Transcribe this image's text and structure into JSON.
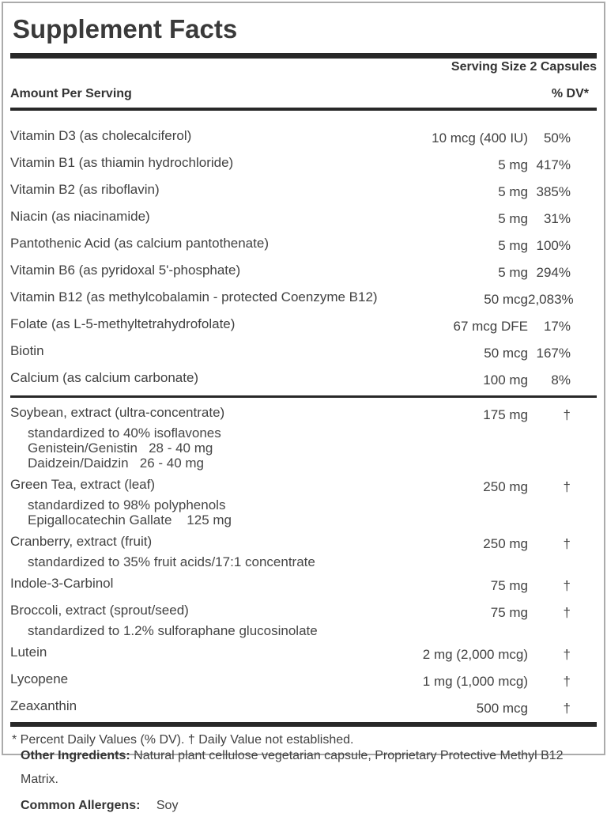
{
  "title": "Supplement Facts",
  "serving_size": "Serving Size 2 Capsules",
  "columns": {
    "amount_header": "Amount Per Serving",
    "dv_header": "% DV*"
  },
  "rows": [
    {
      "label": "Vitamin D3 (as cholecalciferol)",
      "amount": "10 mcg (400 IU)",
      "dv": "50%"
    },
    {
      "label": "Vitamin B1 (as thiamin hydrochloride)",
      "amount": "5 mg",
      "dv": "417%"
    },
    {
      "label": "Vitamin B2 (as riboflavin)",
      "amount": "5 mg",
      "dv": "385%"
    },
    {
      "label": "Niacin (as niacinamide)",
      "amount": "5 mg",
      "dv": "31%"
    },
    {
      "label": "Pantothenic Acid (as calcium pantothenate)",
      "amount": "5 mg",
      "dv": "100%"
    },
    {
      "label": "Vitamin B6 (as pyridoxal 5'-phosphate)",
      "amount": "5 mg",
      "dv": "294%"
    },
    {
      "label": "Vitamin B12 (as methylcobalamin - protected Coenzyme B12)",
      "amount": "50 mcg",
      "dv": "2,083%"
    },
    {
      "label": "Folate (as L-5-methyltetrahydrofolate)",
      "amount": "67 mcg DFE",
      "dv": "17%"
    },
    {
      "label": "Biotin",
      "amount": "50 mcg",
      "dv": "167%"
    },
    {
      "label": "Calcium (as calcium carbonate)",
      "amount": "100 mg",
      "dv": "8%",
      "divider_after": true
    },
    {
      "label": "Soybean, extract (ultra-concentrate)",
      "amount": "175 mg",
      "dv": "†",
      "sub": [
        "standardized to 40% isoflavones",
        "Genistein/Genistin   28 - 40 mg",
        "Daidzein/Daidzin   26 - 40 mg"
      ]
    },
    {
      "label": "Green Tea, extract (leaf)",
      "amount": "250 mg",
      "dv": "†",
      "sub": [
        "standardized to 98% polyphenols",
        "Epigallocatechin Gallate    125 mg"
      ]
    },
    {
      "label": "Cranberry, extract (fruit)",
      "amount": "250 mg",
      "dv": "†",
      "sub": [
        "standardized to 35% fruit acids/17:1 concentrate"
      ]
    },
    {
      "label": "Indole-3-Carbinol",
      "amount": "75 mg",
      "dv": "†"
    },
    {
      "label": "Broccoli, extract (sprout/seed)",
      "amount": "75 mg",
      "dv": "†",
      "sub": [
        "standardized to 1.2% sulforaphane glucosinolate"
      ]
    },
    {
      "label": "Lutein",
      "amount": "2 mg (2,000 mcg)",
      "dv": "†"
    },
    {
      "label": "Lycopene",
      "amount": "1 mg (1,000 mcg)",
      "dv": "†"
    },
    {
      "label": "Zeaxanthin",
      "amount": "500 mcg",
      "dv": "†"
    }
  ],
  "footnote": "* Percent Daily Values (% DV). † Daily Value not established.",
  "other_ingredients": {
    "label": "Other Ingredients:",
    "text": "Natural plant cellulose vegetarian capsule, Proprietary Protective Methyl B12 Matrix."
  },
  "allergens": {
    "label": "Common Allergens:",
    "text": "Soy"
  },
  "colors": {
    "text": "#414141",
    "rule": "#282828",
    "border": "#ababab"
  }
}
